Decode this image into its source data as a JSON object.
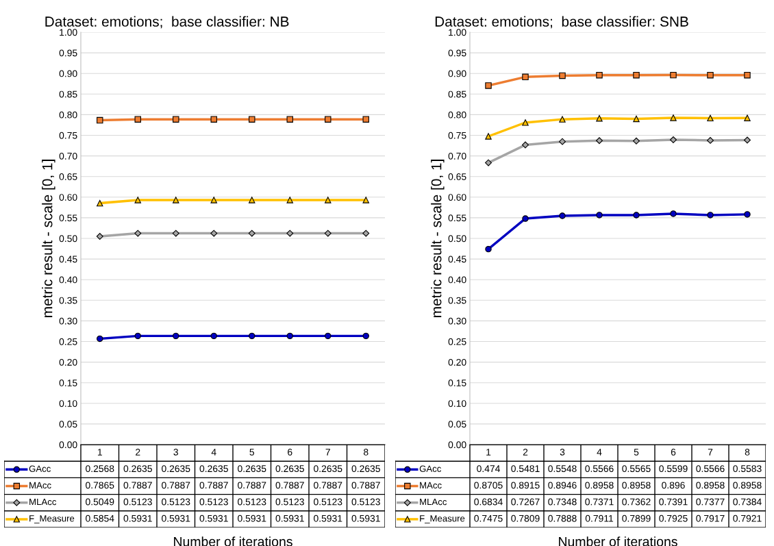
{
  "chart_data": [
    {
      "type": "line",
      "title": "Dataset: emotions;  base classifier: NB",
      "xlabel": "Number of iterations",
      "ylabel": "metric result - scale [0, 1]",
      "categories": [
        "1",
        "2",
        "3",
        "4",
        "5",
        "6",
        "7",
        "8"
      ],
      "series": [
        {
          "name": "GAcc",
          "color": "#0000c0",
          "marker": "circle",
          "values": [
            0.2568,
            0.2635,
            0.2635,
            0.2635,
            0.2635,
            0.2635,
            0.2635,
            0.2635
          ]
        },
        {
          "name": "MAcc",
          "color": "#ed7d31",
          "marker": "square",
          "values": [
            0.7865,
            0.7887,
            0.7887,
            0.7887,
            0.7887,
            0.7887,
            0.7887,
            0.7887
          ]
        },
        {
          "name": "MLAcc",
          "color": "#a5a5a5",
          "marker": "diamond",
          "values": [
            0.5049,
            0.5123,
            0.5123,
            0.5123,
            0.5123,
            0.5123,
            0.5123,
            0.5123
          ]
        },
        {
          "name": "F_Measure",
          "color": "#ffc000",
          "marker": "triangle",
          "values": [
            0.5854,
            0.5931,
            0.5931,
            0.5931,
            0.5931,
            0.5931,
            0.5931,
            0.5931
          ]
        }
      ],
      "ylim": [
        0,
        1
      ],
      "yticks": [
        {
          "value": 0,
          "label": "0.00"
        },
        {
          "value": 0.05,
          "label": "0.05"
        },
        {
          "value": 0.1,
          "label": "0.10"
        },
        {
          "value": 0.15,
          "label": "0.15"
        },
        {
          "value": 0.2,
          "label": "0.20"
        },
        {
          "value": 0.25,
          "label": "0.25"
        },
        {
          "value": 0.3,
          "label": "0.30"
        },
        {
          "value": 0.35,
          "label": "0.35"
        },
        {
          "value": 0.4,
          "label": "0.40"
        },
        {
          "value": 0.45,
          "label": "0.45"
        },
        {
          "value": 0.5,
          "label": "0.50"
        },
        {
          "value": 0.55,
          "label": "0.55"
        },
        {
          "value": 0.6,
          "label": "0.60"
        },
        {
          "value": 0.65,
          "label": "0.65"
        },
        {
          "value": 0.7,
          "label": "0.70"
        },
        {
          "value": 0.75,
          "label": "0.75"
        },
        {
          "value": 0.8,
          "label": "0.80"
        },
        {
          "value": 0.85,
          "label": "0.85"
        },
        {
          "value": 0.9,
          "label": "0.90"
        },
        {
          "value": 0.95,
          "label": "0.95"
        },
        {
          "value": 1,
          "label": "1.00"
        }
      ],
      "grid": "y",
      "legend": "bottom",
      "data_labels": true
    },
    {
      "type": "line",
      "title": "Dataset: emotions;  base classifier: SNB",
      "xlabel": "Number of iterations",
      "ylabel": "metric result - scale [0, 1]",
      "categories": [
        "1",
        "2",
        "3",
        "4",
        "5",
        "6",
        "7",
        "8"
      ],
      "series": [
        {
          "name": "GAcc",
          "color": "#0000c0",
          "marker": "circle",
          "values": [
            0.474,
            0.5481,
            0.5548,
            0.5566,
            0.5565,
            0.5599,
            0.5566,
            0.5583
          ]
        },
        {
          "name": "MAcc",
          "color": "#ed7d31",
          "marker": "square",
          "values": [
            0.8705,
            0.8915,
            0.8946,
            0.8958,
            0.8958,
            0.896,
            0.8958,
            0.8958
          ]
        },
        {
          "name": "MLAcc",
          "color": "#a5a5a5",
          "marker": "diamond",
          "values": [
            0.6834,
            0.7267,
            0.7348,
            0.7371,
            0.7362,
            0.7391,
            0.7377,
            0.7384
          ]
        },
        {
          "name": "F_Measure",
          "color": "#ffc000",
          "marker": "triangle",
          "values": [
            0.7475,
            0.7809,
            0.7888,
            0.7911,
            0.7899,
            0.7925,
            0.7917,
            0.7921
          ]
        }
      ],
      "ylim": [
        0,
        1
      ],
      "yticks": [
        {
          "value": 0,
          "label": "0.00"
        },
        {
          "value": 0.05,
          "label": "0.05"
        },
        {
          "value": 0.1,
          "label": "0.10"
        },
        {
          "value": 0.15,
          "label": "0.15"
        },
        {
          "value": 0.2,
          "label": "0.20"
        },
        {
          "value": 0.25,
          "label": "0.25"
        },
        {
          "value": 0.3,
          "label": "0.30"
        },
        {
          "value": 0.35,
          "label": "0.35"
        },
        {
          "value": 0.4,
          "label": "0.40"
        },
        {
          "value": 0.45,
          "label": "0.45"
        },
        {
          "value": 0.5,
          "label": "0.50"
        },
        {
          "value": 0.55,
          "label": "0.55"
        },
        {
          "value": 0.6,
          "label": "0.60"
        },
        {
          "value": 0.65,
          "label": "0.65"
        },
        {
          "value": 0.7,
          "label": "0.70"
        },
        {
          "value": 0.75,
          "label": "0.75"
        },
        {
          "value": 0.8,
          "label": "0.80"
        },
        {
          "value": 0.85,
          "label": "0.85"
        },
        {
          "value": 0.9,
          "label": "0.90"
        },
        {
          "value": 0.95,
          "label": "0.95"
        },
        {
          "value": 1,
          "label": "1.00"
        }
      ],
      "grid": "y",
      "legend": "bottom",
      "data_labels": true
    }
  ]
}
